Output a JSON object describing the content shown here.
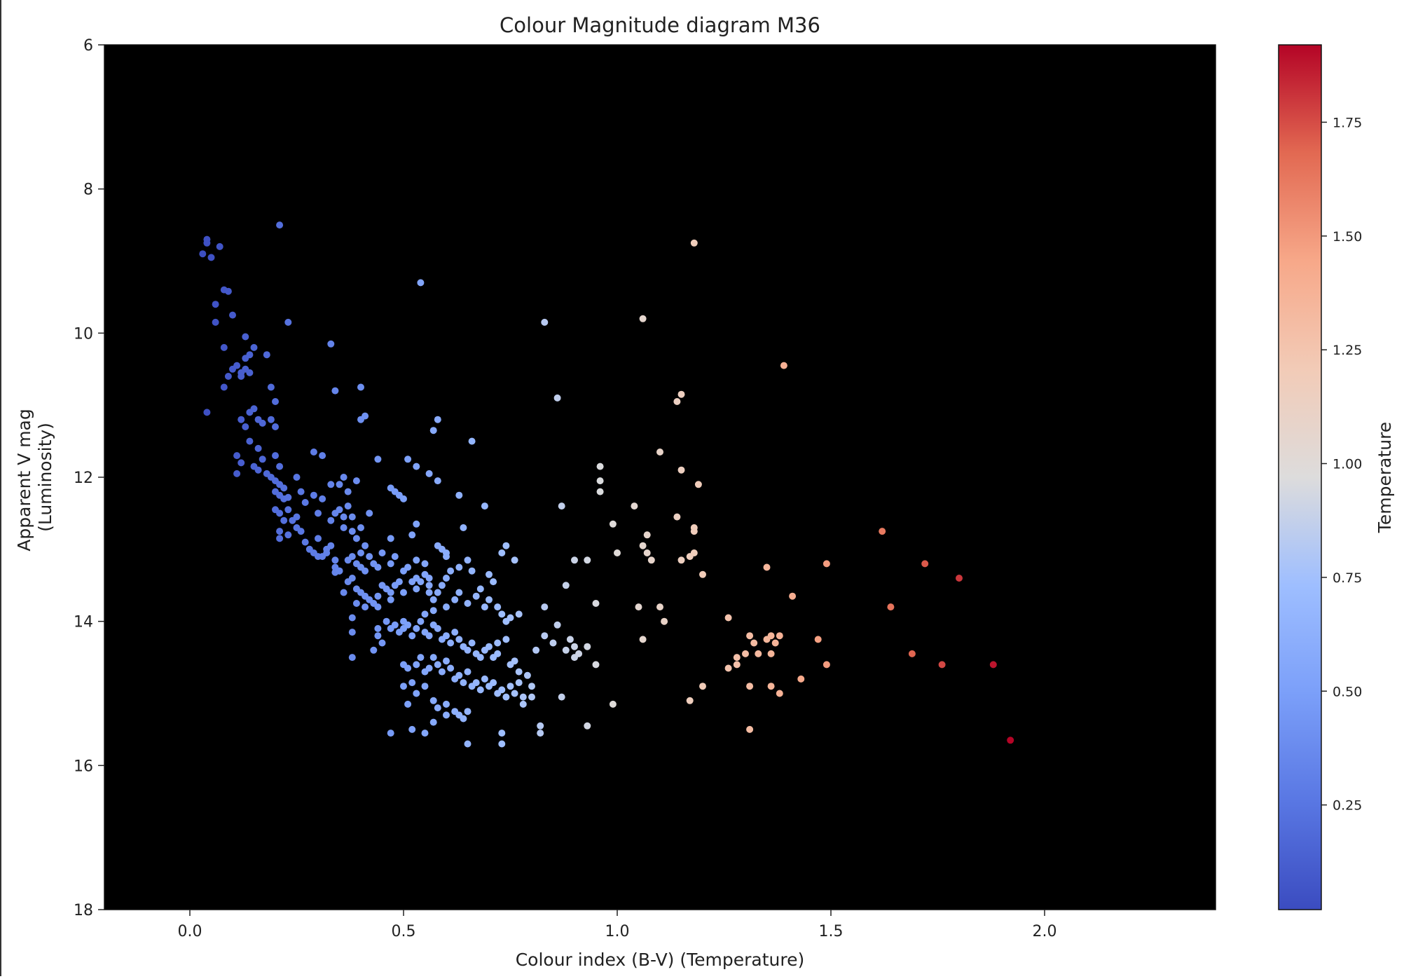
{
  "chart_data": {
    "type": "scatter",
    "title": "Colour Magnitude diagram M36",
    "xlabel": "Colour index (B-V) (Temperature)",
    "ylabel_lines": [
      "Apparent V mag",
      "(Luminosity)"
    ],
    "xlim": [
      -0.2,
      2.4
    ],
    "ylim": [
      18,
      6
    ],
    "y_inverted": true,
    "x_ticks": [
      "0.0",
      "0.5",
      "1.0",
      "1.5",
      "2.0"
    ],
    "y_ticks": [
      "6",
      "8",
      "10",
      "12",
      "14",
      "16",
      "18"
    ],
    "background_color": "#000000",
    "colormap": "coolwarm",
    "colorbar": {
      "label": "Temperature",
      "range": [
        0.02,
        1.92
      ],
      "ticks": [
        "0.25",
        "0.50",
        "0.75",
        "1.00",
        "1.25",
        "1.50",
        "1.75"
      ]
    },
    "grid": false,
    "legend": "none",
    "points": [
      [
        0.03,
        8.9
      ],
      [
        0.04,
        8.75
      ],
      [
        0.04,
        8.7
      ],
      [
        0.05,
        8.95
      ],
      [
        0.07,
        8.8
      ],
      [
        0.08,
        9.4
      ],
      [
        0.09,
        9.42
      ],
      [
        0.06,
        9.6
      ],
      [
        0.1,
        9.75
      ],
      [
        0.06,
        9.85
      ],
      [
        0.04,
        11.1
      ],
      [
        0.08,
        10.2
      ],
      [
        0.08,
        10.75
      ],
      [
        0.1,
        10.5
      ],
      [
        0.11,
        10.45
      ],
      [
        0.12,
        10.6
      ],
      [
        0.13,
        10.5
      ],
      [
        0.13,
        10.35
      ],
      [
        0.14,
        10.3
      ],
      [
        0.15,
        10.2
      ],
      [
        0.12,
        10.55
      ],
      [
        0.14,
        10.55
      ],
      [
        0.13,
        10.05
      ],
      [
        0.18,
        10.3
      ],
      [
        0.09,
        10.6
      ],
      [
        0.12,
        11.2
      ],
      [
        0.13,
        11.3
      ],
      [
        0.14,
        11.1
      ],
      [
        0.15,
        11.05
      ],
      [
        0.16,
        11.2
      ],
      [
        0.17,
        11.25
      ],
      [
        0.19,
        11.2
      ],
      [
        0.2,
        11.3
      ],
      [
        0.2,
        10.95
      ],
      [
        0.19,
        10.75
      ],
      [
        0.14,
        11.5
      ],
      [
        0.16,
        11.6
      ],
      [
        0.11,
        11.7
      ],
      [
        0.12,
        11.8
      ],
      [
        0.11,
        11.95
      ],
      [
        0.15,
        11.85
      ],
      [
        0.16,
        11.9
      ],
      [
        0.17,
        11.75
      ],
      [
        0.2,
        11.7
      ],
      [
        0.18,
        11.95
      ],
      [
        0.19,
        12.0
      ],
      [
        0.2,
        12.05
      ],
      [
        0.21,
        11.85
      ],
      [
        0.21,
        12.1
      ],
      [
        0.22,
        12.15
      ],
      [
        0.2,
        12.2
      ],
      [
        0.21,
        12.25
      ],
      [
        0.22,
        12.3
      ],
      [
        0.23,
        12.28
      ],
      [
        0.2,
        12.45
      ],
      [
        0.21,
        12.5
      ],
      [
        0.23,
        12.45
      ],
      [
        0.22,
        12.6
      ],
      [
        0.24,
        12.6
      ],
      [
        0.21,
        12.75
      ],
      [
        0.21,
        12.85
      ],
      [
        0.23,
        12.8
      ],
      [
        0.25,
        12.7
      ],
      [
        0.26,
        12.75
      ],
      [
        0.27,
        12.9
      ],
      [
        0.25,
        12.55
      ],
      [
        0.27,
        12.35
      ],
      [
        0.26,
        12.2
      ],
      [
        0.25,
        12.0
      ],
      [
        0.29,
        11.65
      ],
      [
        0.31,
        11.7
      ],
      [
        0.29,
        12.25
      ],
      [
        0.31,
        12.3
      ],
      [
        0.3,
        12.5
      ],
      [
        0.3,
        12.85
      ],
      [
        0.28,
        13.0
      ],
      [
        0.29,
        13.05
      ],
      [
        0.31,
        13.1
      ],
      [
        0.32,
        13.0
      ],
      [
        0.33,
        12.95
      ],
      [
        0.33,
        12.6
      ],
      [
        0.34,
        12.5
      ],
      [
        0.35,
        12.45
      ],
      [
        0.33,
        12.1
      ],
      [
        0.35,
        12.1
      ],
      [
        0.36,
        12.0
      ],
      [
        0.37,
        12.2
      ],
      [
        0.37,
        12.4
      ],
      [
        0.38,
        12.55
      ],
      [
        0.36,
        12.7
      ],
      [
        0.36,
        12.55
      ],
      [
        0.38,
        12.75
      ],
      [
        0.39,
        12.85
      ],
      [
        0.34,
        13.15
      ],
      [
        0.34,
        13.25
      ],
      [
        0.34,
        13.32
      ],
      [
        0.35,
        13.3
      ],
      [
        0.37,
        13.15
      ],
      [
        0.38,
        13.1
      ],
      [
        0.39,
        13.2
      ],
      [
        0.4,
        13.25
      ],
      [
        0.41,
        13.3
      ],
      [
        0.4,
        13.05
      ],
      [
        0.42,
        13.1
      ],
      [
        0.43,
        13.2
      ],
      [
        0.44,
        13.25
      ],
      [
        0.41,
        12.95
      ],
      [
        0.4,
        12.7
      ],
      [
        0.42,
        12.5
      ],
      [
        0.39,
        12.05
      ],
      [
        0.4,
        11.2
      ],
      [
        0.41,
        11.15
      ],
      [
        0.4,
        10.75
      ],
      [
        0.34,
        10.8
      ],
      [
        0.33,
        10.15
      ],
      [
        0.23,
        9.85
      ],
      [
        0.21,
        8.5
      ],
      [
        0.54,
        9.3
      ],
      [
        0.36,
        13.6
      ],
      [
        0.37,
        13.45
      ],
      [
        0.38,
        13.4
      ],
      [
        0.39,
        13.55
      ],
      [
        0.4,
        13.6
      ],
      [
        0.41,
        13.65
      ],
      [
        0.41,
        13.8
      ],
      [
        0.42,
        13.7
      ],
      [
        0.43,
        13.75
      ],
      [
        0.44,
        13.65
      ],
      [
        0.44,
        13.8
      ],
      [
        0.45,
        13.5
      ],
      [
        0.46,
        13.55
      ],
      [
        0.47,
        13.6
      ],
      [
        0.47,
        13.7
      ],
      [
        0.48,
        13.5
      ],
      [
        0.49,
        13.45
      ],
      [
        0.5,
        13.6
      ],
      [
        0.5,
        13.3
      ],
      [
        0.51,
        13.25
      ],
      [
        0.52,
        13.45
      ],
      [
        0.53,
        13.4
      ],
      [
        0.53,
        13.55
      ],
      [
        0.54,
        13.45
      ],
      [
        0.55,
        13.35
      ],
      [
        0.56,
        13.4
      ],
      [
        0.56,
        13.5
      ],
      [
        0.53,
        13.15
      ],
      [
        0.55,
        13.2
      ],
      [
        0.47,
        13.2
      ],
      [
        0.48,
        13.1
      ],
      [
        0.45,
        13.05
      ],
      [
        0.47,
        12.85
      ],
      [
        0.52,
        12.8
      ],
      [
        0.53,
        12.65
      ],
      [
        0.5,
        12.3
      ],
      [
        0.49,
        12.25
      ],
      [
        0.48,
        12.2
      ],
      [
        0.47,
        12.15
      ],
      [
        0.44,
        11.75
      ],
      [
        0.51,
        11.75
      ],
      [
        0.53,
        11.85
      ],
      [
        0.56,
        11.95
      ],
      [
        0.58,
        12.05
      ],
      [
        0.57,
        11.35
      ],
      [
        0.58,
        11.2
      ],
      [
        0.63,
        12.25
      ],
      [
        0.64,
        12.7
      ],
      [
        0.66,
        11.5
      ],
      [
        0.69,
        12.4
      ],
      [
        0.44,
        14.1
      ],
      [
        0.46,
        14.0
      ],
      [
        0.47,
        14.1
      ],
      [
        0.48,
        14.05
      ],
      [
        0.49,
        14.15
      ],
      [
        0.5,
        14.1
      ],
      [
        0.5,
        14.0
      ],
      [
        0.51,
        14.05
      ],
      [
        0.52,
        14.2
      ],
      [
        0.53,
        14.1
      ],
      [
        0.54,
        14.0
      ],
      [
        0.55,
        14.15
      ],
      [
        0.56,
        14.2
      ],
      [
        0.57,
        14.05
      ],
      [
        0.58,
        14.1
      ],
      [
        0.59,
        14.25
      ],
      [
        0.6,
        14.2
      ],
      [
        0.61,
        14.3
      ],
      [
        0.62,
        14.15
      ],
      [
        0.63,
        14.25
      ],
      [
        0.64,
        14.35
      ],
      [
        0.65,
        14.4
      ],
      [
        0.66,
        14.3
      ],
      [
        0.67,
        14.45
      ],
      [
        0.68,
        14.5
      ],
      [
        0.69,
        14.4
      ],
      [
        0.7,
        14.35
      ],
      [
        0.71,
        14.5
      ],
      [
        0.72,
        14.45
      ],
      [
        0.55,
        13.9
      ],
      [
        0.57,
        13.85
      ],
      [
        0.6,
        13.8
      ],
      [
        0.62,
        13.7
      ],
      [
        0.63,
        13.6
      ],
      [
        0.65,
        13.75
      ],
      [
        0.67,
        13.65
      ],
      [
        0.68,
        13.55
      ],
      [
        0.69,
        13.8
      ],
      [
        0.7,
        13.7
      ],
      [
        0.72,
        13.8
      ],
      [
        0.73,
        13.9
      ],
      [
        0.74,
        14.0
      ],
      [
        0.75,
        13.95
      ],
      [
        0.77,
        13.9
      ],
      [
        0.58,
        13.6
      ],
      [
        0.59,
        13.5
      ],
      [
        0.6,
        13.4
      ],
      [
        0.61,
        13.3
      ],
      [
        0.63,
        13.25
      ],
      [
        0.59,
        13.0
      ],
      [
        0.6,
        13.05
      ],
      [
        0.58,
        12.95
      ],
      [
        0.6,
        13.1
      ],
      [
        0.56,
        13.6
      ],
      [
        0.57,
        13.7
      ],
      [
        0.65,
        13.15
      ],
      [
        0.66,
        13.3
      ],
      [
        0.7,
        13.35
      ],
      [
        0.71,
        13.45
      ],
      [
        0.74,
        12.95
      ],
      [
        0.73,
        13.05
      ],
      [
        0.76,
        13.15
      ],
      [
        0.5,
        14.6
      ],
      [
        0.51,
        14.65
      ],
      [
        0.53,
        14.6
      ],
      [
        0.54,
        14.5
      ],
      [
        0.55,
        14.7
      ],
      [
        0.56,
        14.65
      ],
      [
        0.57,
        14.5
      ],
      [
        0.58,
        14.6
      ],
      [
        0.59,
        14.7
      ],
      [
        0.6,
        14.55
      ],
      [
        0.61,
        14.65
      ],
      [
        0.62,
        14.8
      ],
      [
        0.63,
        14.75
      ],
      [
        0.64,
        14.85
      ],
      [
        0.65,
        14.7
      ],
      [
        0.66,
        14.9
      ],
      [
        0.67,
        14.85
      ],
      [
        0.68,
        14.95
      ],
      [
        0.69,
        14.8
      ],
      [
        0.7,
        14.9
      ],
      [
        0.71,
        14.85
      ],
      [
        0.72,
        15.0
      ],
      [
        0.73,
        14.95
      ],
      [
        0.74,
        15.05
      ],
      [
        0.75,
        14.9
      ],
      [
        0.76,
        15.0
      ],
      [
        0.77,
        14.85
      ],
      [
        0.78,
        15.05
      ],
      [
        0.52,
        14.85
      ],
      [
        0.53,
        15.0
      ],
      [
        0.55,
        14.9
      ],
      [
        0.57,
        15.1
      ],
      [
        0.58,
        15.2
      ],
      [
        0.6,
        15.15
      ],
      [
        0.62,
        15.25
      ],
      [
        0.63,
        15.3
      ],
      [
        0.64,
        15.35
      ],
      [
        0.65,
        15.25
      ],
      [
        0.52,
        15.5
      ],
      [
        0.55,
        15.55
      ],
      [
        0.57,
        15.4
      ],
      [
        0.6,
        15.3
      ],
      [
        0.47,
        15.55
      ],
      [
        0.65,
        15.7
      ],
      [
        0.73,
        15.55
      ],
      [
        0.73,
        15.7
      ],
      [
        0.5,
        14.9
      ],
      [
        0.51,
        15.15
      ],
      [
        0.72,
        14.3
      ],
      [
        0.74,
        14.25
      ],
      [
        0.75,
        14.6
      ],
      [
        0.76,
        14.55
      ],
      [
        0.77,
        14.7
      ],
      [
        0.79,
        14.75
      ],
      [
        0.8,
        14.9
      ],
      [
        0.78,
        15.15
      ],
      [
        0.82,
        15.45
      ],
      [
        0.82,
        15.55
      ],
      [
        0.81,
        14.4
      ],
      [
        0.83,
        14.2
      ],
      [
        0.85,
        14.3
      ],
      [
        0.86,
        14.05
      ],
      [
        0.87,
        15.05
      ],
      [
        0.88,
        14.4
      ],
      [
        0.89,
        14.25
      ],
      [
        0.9,
        14.5
      ],
      [
        0.91,
        14.45
      ],
      [
        0.9,
        14.35
      ],
      [
        0.93,
        14.35
      ],
      [
        0.95,
        14.6
      ],
      [
        0.83,
        13.8
      ],
      [
        0.88,
        13.5
      ],
      [
        0.9,
        13.15
      ],
      [
        0.93,
        13.15
      ],
      [
        0.93,
        15.45
      ],
      [
        0.95,
        13.75
      ],
      [
        0.96,
        11.85
      ],
      [
        0.96,
        12.05
      ],
      [
        0.96,
        12.2
      ],
      [
        0.99,
        12.65
      ],
      [
        1.0,
        13.05
      ],
      [
        0.99,
        15.15
      ],
      [
        0.8,
        15.05
      ],
      [
        0.38,
        14.5
      ],
      [
        0.38,
        14.15
      ],
      [
        0.38,
        13.95
      ],
      [
        0.39,
        13.75
      ],
      [
        0.43,
        14.4
      ],
      [
        0.45,
        14.3
      ],
      [
        0.35,
        13.3
      ],
      [
        0.32,
        13.05
      ],
      [
        0.3,
        13.1
      ],
      [
        0.44,
        14.2
      ],
      [
        0.83,
        9.85
      ],
      [
        0.86,
        10.9
      ],
      [
        0.87,
        12.4
      ],
      [
        1.06,
        9.8
      ],
      [
        1.18,
        8.75
      ],
      [
        1.04,
        12.4
      ],
      [
        1.07,
        12.8
      ],
      [
        1.06,
        12.95
      ],
      [
        1.07,
        13.05
      ],
      [
        1.08,
        13.15
      ],
      [
        1.05,
        13.8
      ],
      [
        1.06,
        14.25
      ],
      [
        1.1,
        13.8
      ],
      [
        1.11,
        14.0
      ],
      [
        1.1,
        11.65
      ],
      [
        1.14,
        12.55
      ],
      [
        1.15,
        11.9
      ],
      [
        1.14,
        10.95
      ],
      [
        1.15,
        10.85
      ],
      [
        1.15,
        13.15
      ],
      [
        1.17,
        13.1
      ],
      [
        1.18,
        12.75
      ],
      [
        1.18,
        12.7
      ],
      [
        1.19,
        12.1
      ],
      [
        1.18,
        13.05
      ],
      [
        1.2,
        13.35
      ],
      [
        1.17,
        15.1
      ],
      [
        1.2,
        14.9
      ],
      [
        1.26,
        13.95
      ],
      [
        1.26,
        14.65
      ],
      [
        1.28,
        14.5
      ],
      [
        1.28,
        14.6
      ],
      [
        1.3,
        14.45
      ],
      [
        1.31,
        14.2
      ],
      [
        1.32,
        14.3
      ],
      [
        1.33,
        14.45
      ],
      [
        1.35,
        14.25
      ],
      [
        1.36,
        14.2
      ],
      [
        1.36,
        14.45
      ],
      [
        1.37,
        14.3
      ],
      [
        1.38,
        14.2
      ],
      [
        1.31,
        14.9
      ],
      [
        1.36,
        14.9
      ],
      [
        1.38,
        15.0
      ],
      [
        1.43,
        14.8
      ],
      [
        1.35,
        13.25
      ],
      [
        1.41,
        13.65
      ],
      [
        1.39,
        10.45
      ],
      [
        1.47,
        14.25
      ],
      [
        1.49,
        13.2
      ],
      [
        1.49,
        14.6
      ],
      [
        1.31,
        15.5
      ],
      [
        1.62,
        12.75
      ],
      [
        1.64,
        13.8
      ],
      [
        1.69,
        14.45
      ],
      [
        1.72,
        13.2
      ],
      [
        1.76,
        14.6
      ],
      [
        1.8,
        13.4
      ],
      [
        1.88,
        14.6
      ],
      [
        1.92,
        15.65
      ]
    ]
  }
}
